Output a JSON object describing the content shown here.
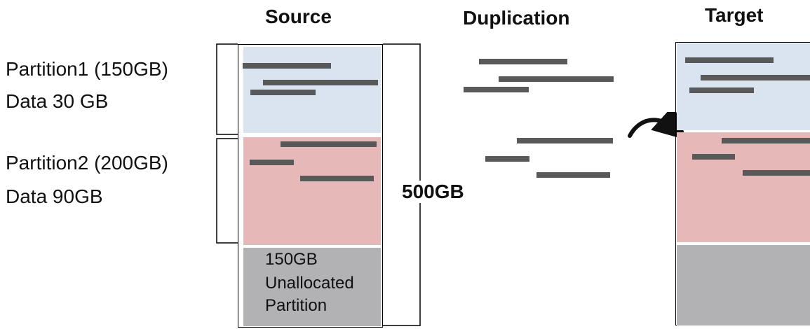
{
  "titles": {
    "source": "Source",
    "duplication": "Duplication",
    "target": "Target"
  },
  "partitions": [
    {
      "name": "Partition1 (150GB)",
      "data": "Data 30 GB",
      "color": "#dae3f0"
    },
    {
      "name": "Partition2 (200GB)",
      "data": "Data 90GB",
      "color": "#e6b8b7"
    }
  ],
  "unallocated": {
    "lines": [
      "150GB",
      "Unallocated",
      "Partition"
    ],
    "color": "#b2b2b4"
  },
  "disk_size": "500GB",
  "colors": {
    "stroke": "#595959",
    "outline": "#000000"
  },
  "icons": {
    "arrow": "curved-arrow-icon"
  }
}
